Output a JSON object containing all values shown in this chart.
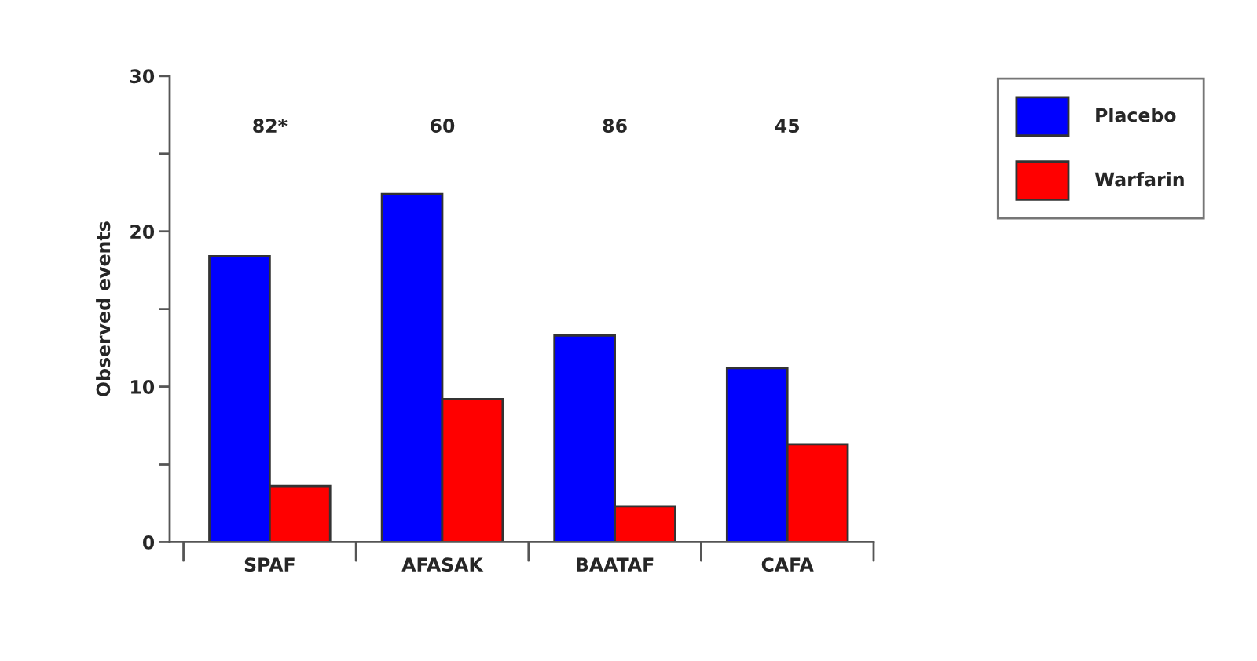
{
  "chart_data": {
    "type": "bar",
    "ylabel": "Observed events",
    "categories": [
      "SPAF",
      "AFASAK",
      "BAATAF",
      "CAFA"
    ],
    "series": [
      {
        "name": "Placebo",
        "color": "#0000ff",
        "values": [
          18.4,
          22.4,
          13.3,
          11.2
        ]
      },
      {
        "name": "Warfarin",
        "color": "#ff0000",
        "values": [
          3.6,
          9.2,
          2.3,
          6.3
        ]
      }
    ],
    "ylim": [
      0,
      30
    ],
    "yticks": [
      0,
      {
        "value": 5,
        "label": null
      },
      10,
      {
        "value": 15,
        "label": null
      },
      20,
      {
        "value": 25,
        "label": null
      },
      30
    ],
    "annotations": [
      "82*",
      "60",
      "86",
      "45"
    ],
    "legend": "top right",
    "grid": false
  }
}
